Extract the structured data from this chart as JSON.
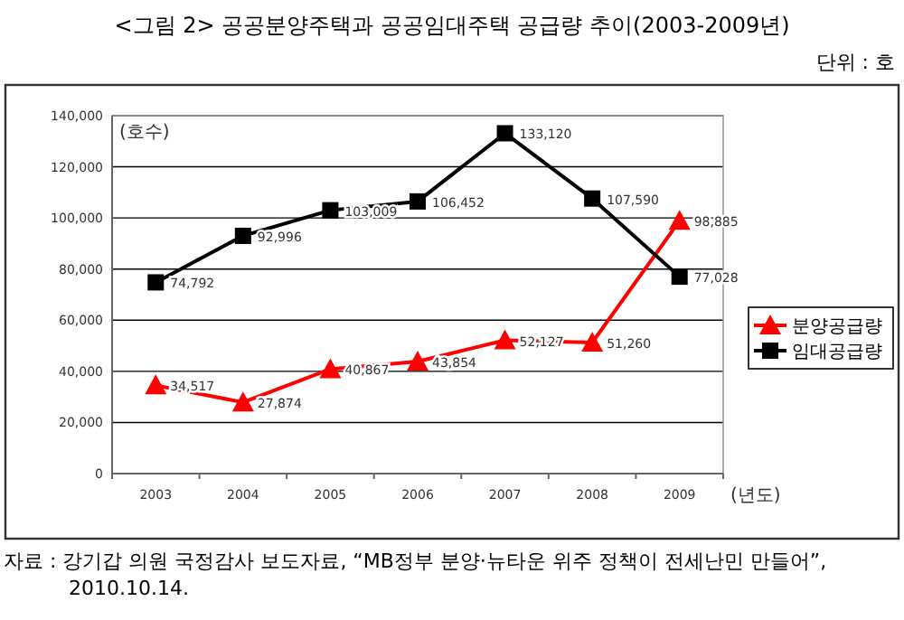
{
  "chart_data": {
    "type": "line",
    "title": "<그림 2> 공공분양주택과 공공임대주택 공급량 추이(2003-2009년)",
    "subtitle": "단위 : 호",
    "ylabel": "(호수)",
    "xlabel": "(년도)",
    "annotations": [
      "자료 : 강기갑 의원 국정감사 보도자료, “MB정부 분양·뉴타운 위주 정책이 전세난민 만들어”, 2010.10.14."
    ],
    "categories": [
      "2003",
      "2004",
      "2005",
      "2006",
      "2007",
      "2008",
      "2009"
    ],
    "series": [
      {
        "name": "분양공급량",
        "color": "#ff0000",
        "marker": "triangle",
        "values": [
          34517,
          27874,
          40867,
          43854,
          52127,
          51260,
          98885
        ],
        "value_labels": [
          "34,517",
          "27,874",
          "40,867",
          "43,854",
          "52,127",
          "51,260",
          "98,885"
        ]
      },
      {
        "name": "임대공급량",
        "color": "#000000",
        "marker": "square",
        "values": [
          74792,
          92996,
          103009,
          106452,
          133120,
          107590,
          77028
        ],
        "value_labels": [
          "74,792",
          "92,996",
          "103,009",
          "106,452",
          "133,120",
          "107,590",
          "77,028"
        ]
      }
    ],
    "ylim": [
      0,
      140000
    ],
    "yticks": [
      {
        "value": 0,
        "label": "0"
      },
      {
        "value": 20000,
        "label": "20,000"
      },
      {
        "value": 40000,
        "label": "40,000"
      },
      {
        "value": 60000,
        "label": "60,000"
      },
      {
        "value": 80000,
        "label": "80,000"
      },
      {
        "value": 100000,
        "label": "100,000"
      },
      {
        "value": 120000,
        "label": "120,000"
      },
      {
        "value": 140000,
        "label": "140,000"
      }
    ],
    "grid": "y",
    "legend": "right"
  }
}
